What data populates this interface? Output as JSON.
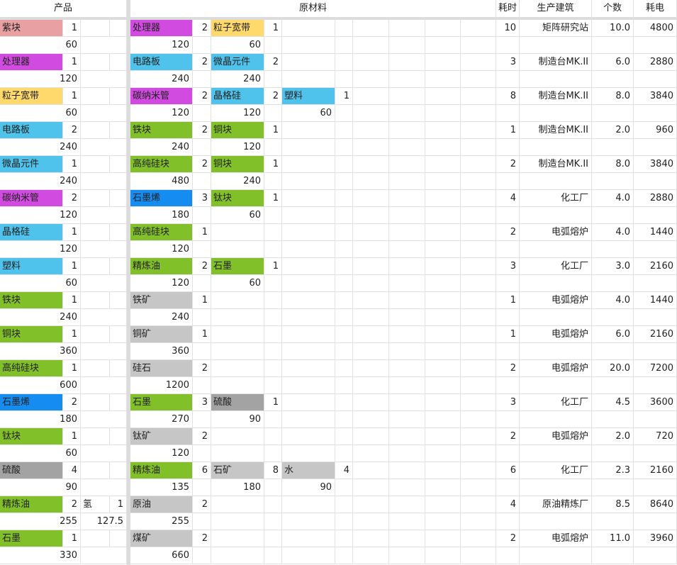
{
  "headers": {
    "product": "产品",
    "materials": "原材料",
    "time": "耗时",
    "building": "生产建筑",
    "count": "个数",
    "power": "耗电"
  },
  "colors": {
    "pink": "#e9a0a2",
    "magenta": "#d24be0",
    "yellow": "#ffd96c",
    "cyan": "#4fc3ec",
    "green": "#82c02a",
    "blue": "#148cf0",
    "gray": "#c6c6c6",
    "darkgray": "#a3a3a3",
    "white": "#ffffff"
  },
  "rows": [
    {
      "products": [
        {
          "name": "紫块",
          "qty": "1",
          "rate": "60",
          "color": "pink"
        }
      ],
      "materials": [
        {
          "name": "处理器",
          "qty": "2",
          "rate": "120",
          "color": "magenta"
        },
        {
          "name": "粒子宽带",
          "qty": "1",
          "rate": "60",
          "color": "yellow"
        }
      ],
      "time": "10",
      "building": "矩阵研究站",
      "count": "10.0",
      "power": "4800"
    },
    {
      "products": [
        {
          "name": "处理器",
          "qty": "1",
          "rate": "120",
          "color": "magenta"
        }
      ],
      "materials": [
        {
          "name": "电路板",
          "qty": "2",
          "rate": "240",
          "color": "cyan"
        },
        {
          "name": "微晶元件",
          "qty": "2",
          "rate": "240",
          "color": "cyan"
        }
      ],
      "time": "3",
      "building": "制造台MK.II",
      "count": "6.0",
      "power": "2880"
    },
    {
      "products": [
        {
          "name": "粒子宽带",
          "qty": "1",
          "rate": "60",
          "color": "yellow"
        }
      ],
      "materials": [
        {
          "name": "碳纳米管",
          "qty": "2",
          "rate": "120",
          "color": "magenta"
        },
        {
          "name": "晶格硅",
          "qty": "2",
          "rate": "120",
          "color": "cyan"
        },
        {
          "name": "塑料",
          "qty": "1",
          "rate": "60",
          "color": "cyan"
        }
      ],
      "time": "8",
      "building": "制造台MK.II",
      "count": "8.0",
      "power": "3840"
    },
    {
      "products": [
        {
          "name": "电路板",
          "qty": "2",
          "rate": "240",
          "color": "cyan"
        }
      ],
      "materials": [
        {
          "name": "铁块",
          "qty": "2",
          "rate": "240",
          "color": "green"
        },
        {
          "name": "铜块",
          "qty": "1",
          "rate": "120",
          "color": "green"
        }
      ],
      "time": "1",
      "building": "制造台MK.II",
      "count": "2.0",
      "power": "960"
    },
    {
      "products": [
        {
          "name": "微晶元件",
          "qty": "1",
          "rate": "240",
          "color": "cyan"
        }
      ],
      "materials": [
        {
          "name": "高纯硅块",
          "qty": "2",
          "rate": "480",
          "color": "green"
        },
        {
          "name": "铜块",
          "qty": "1",
          "rate": "240",
          "color": "green"
        }
      ],
      "time": "2",
      "building": "制造台MK.II",
      "count": "8.0",
      "power": "3840"
    },
    {
      "products": [
        {
          "name": "碳纳米管",
          "qty": "2",
          "rate": "120",
          "color": "magenta"
        }
      ],
      "materials": [
        {
          "name": "石墨烯",
          "qty": "3",
          "rate": "180",
          "color": "blue"
        },
        {
          "name": "钛块",
          "qty": "1",
          "rate": "60",
          "color": "green"
        }
      ],
      "time": "4",
      "building": "化工厂",
      "count": "4.0",
      "power": "2880"
    },
    {
      "products": [
        {
          "name": "晶格硅",
          "qty": "1",
          "rate": "120",
          "color": "cyan"
        }
      ],
      "materials": [
        {
          "name": "高纯硅块",
          "qty": "1",
          "rate": "120",
          "color": "green"
        }
      ],
      "time": "2",
      "building": "电弧熔炉",
      "count": "4.0",
      "power": "1440"
    },
    {
      "products": [
        {
          "name": "塑料",
          "qty": "1",
          "rate": "60",
          "color": "cyan"
        }
      ],
      "materials": [
        {
          "name": "精炼油",
          "qty": "2",
          "rate": "120",
          "color": "green"
        },
        {
          "name": "石墨",
          "qty": "1",
          "rate": "60",
          "color": "green"
        }
      ],
      "time": "3",
      "building": "化工厂",
      "count": "3.0",
      "power": "2160"
    },
    {
      "products": [
        {
          "name": "铁块",
          "qty": "1",
          "rate": "240",
          "color": "green"
        }
      ],
      "materials": [
        {
          "name": "铁矿",
          "qty": "1",
          "rate": "240",
          "color": "gray"
        }
      ],
      "time": "1",
      "building": "电弧熔炉",
      "count": "4.0",
      "power": "1440"
    },
    {
      "products": [
        {
          "name": "铜块",
          "qty": "1",
          "rate": "360",
          "color": "green"
        }
      ],
      "materials": [
        {
          "name": "铜矿",
          "qty": "1",
          "rate": "360",
          "color": "gray"
        }
      ],
      "time": "1",
      "building": "电弧熔炉",
      "count": "6.0",
      "power": "2160"
    },
    {
      "products": [
        {
          "name": "高纯硅块",
          "qty": "1",
          "rate": "600",
          "color": "green"
        }
      ],
      "materials": [
        {
          "name": "硅石",
          "qty": "2",
          "rate": "1200",
          "color": "gray"
        }
      ],
      "time": "2",
      "building": "电弧熔炉",
      "count": "20.0",
      "power": "7200"
    },
    {
      "products": [
        {
          "name": "石墨烯",
          "qty": "2",
          "rate": "180",
          "color": "blue"
        }
      ],
      "materials": [
        {
          "name": "石墨",
          "qty": "3",
          "rate": "270",
          "color": "green"
        },
        {
          "name": "硫酸",
          "qty": "1",
          "rate": "90",
          "color": "darkgray"
        }
      ],
      "time": "3",
      "building": "化工厂",
      "count": "4.5",
      "power": "3600"
    },
    {
      "products": [
        {
          "name": "钛块",
          "qty": "1",
          "rate": "60",
          "color": "green"
        }
      ],
      "materials": [
        {
          "name": "钛矿",
          "qty": "2",
          "rate": "120",
          "color": "gray"
        }
      ],
      "time": "2",
      "building": "电弧熔炉",
      "count": "2.0",
      "power": "720"
    },
    {
      "products": [
        {
          "name": "硫酸",
          "qty": "4",
          "rate": "90",
          "color": "darkgray"
        }
      ],
      "materials": [
        {
          "name": "精炼油",
          "qty": "6",
          "rate": "135",
          "color": "green"
        },
        {
          "name": "石矿",
          "qty": "8",
          "rate": "180",
          "color": "gray"
        },
        {
          "name": "水",
          "qty": "4",
          "rate": "90",
          "color": "gray"
        }
      ],
      "time": "6",
      "building": "化工厂",
      "count": "2.3",
      "power": "2160"
    },
    {
      "products": [
        {
          "name": "精炼油",
          "qty": "2",
          "rate": "255",
          "color": "green"
        },
        {
          "name": "氢",
          "qty": "1",
          "rate": "127.5",
          "color": "white"
        }
      ],
      "materials": [
        {
          "name": "原油",
          "qty": "2",
          "rate": "255",
          "color": "gray"
        }
      ],
      "time": "4",
      "building": "原油精炼厂",
      "count": "8.5",
      "power": "8640"
    },
    {
      "products": [
        {
          "name": "石墨",
          "qty": "1",
          "rate": "330",
          "color": "green"
        }
      ],
      "materials": [
        {
          "name": "煤矿",
          "qty": "2",
          "rate": "660",
          "color": "gray"
        }
      ],
      "time": "2",
      "building": "电弧熔炉",
      "count": "11.0",
      "power": "3960"
    }
  ]
}
